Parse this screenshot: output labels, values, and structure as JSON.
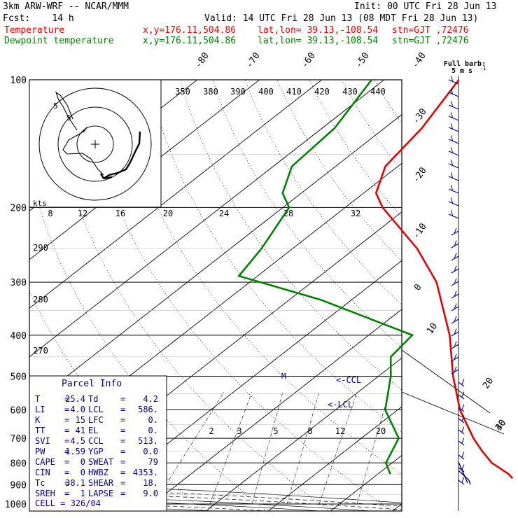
{
  "header": {
    "model": "3km ARW-WRF -- NCAR/MMM",
    "init": "Init: 00 UTC Fri 28 Jun 13",
    "fcst": "Fcst:    14 h",
    "valid": "Valid: 14 UTC Fri 28 Jun 13 (08 MDT Fri 28 Jun 13)",
    "temp_label": "Temperature",
    "dew_label": "Dewpoint temperature",
    "xy": "x,y=176.11,504.86",
    "latlon": "lat,lon= 39.13,-108.54",
    "stn": "stn=GJT ,72476"
  },
  "colors": {
    "temperature": "#e00000",
    "dewpoint": "#008000",
    "wind": "#000080",
    "grid": "#000000"
  },
  "chart_data": {
    "type": "line",
    "title": "",
    "y_axis": "pressure (hPa), log scale",
    "pressure_labels": [
      "100",
      "200",
      "300",
      "400",
      "500",
      "600",
      "700",
      "800",
      "900",
      "1000"
    ],
    "isotherm_labels": [
      "-80",
      "-70",
      "-60",
      "-50",
      "-40",
      "-30",
      "-20",
      "-10",
      "0",
      "10",
      "20",
      "30",
      "40"
    ],
    "theta_labels": [
      "350",
      "380",
      "390",
      "400",
      "410",
      "420",
      "430",
      "440",
      "290",
      "280",
      "270"
    ],
    "mixing_ratio_labels": [
      "8",
      "12",
      "16",
      "20",
      "24",
      "28",
      "32",
      "2",
      "3",
      "5",
      "8",
      "12",
      "20"
    ],
    "series": [
      {
        "name": "Temperature",
        "points": [
          {
            "p": 100,
            "t": -68
          },
          {
            "p": 130,
            "t": -64
          },
          {
            "p": 160,
            "t": -62
          },
          {
            "p": 185,
            "t": -58
          },
          {
            "p": 200,
            "t": -54
          },
          {
            "p": 250,
            "t": -40
          },
          {
            "p": 300,
            "t": -30
          },
          {
            "p": 400,
            "t": -17
          },
          {
            "p": 500,
            "t": -8
          },
          {
            "p": 600,
            "t": 0
          },
          {
            "p": 700,
            "t": 8
          },
          {
            "p": 750,
            "t": 12
          },
          {
            "p": 800,
            "t": 16
          },
          {
            "p": 850,
            "t": 21
          },
          {
            "p": 870,
            "t": 22.5
          }
        ]
      },
      {
        "name": "Dewpoint temperature",
        "points": [
          {
            "p": 100,
            "t": -82
          },
          {
            "p": 130,
            "t": -78
          },
          {
            "p": 160,
            "t": -77
          },
          {
            "p": 185,
            "t": -73
          },
          {
            "p": 200,
            "t": -69
          },
          {
            "p": 250,
            "t": -65
          },
          {
            "p": 290,
            "t": -63
          },
          {
            "p": 330,
            "t": -45
          },
          {
            "p": 400,
            "t": -23
          },
          {
            "p": 450,
            "t": -22
          },
          {
            "p": 500,
            "t": -18
          },
          {
            "p": 600,
            "t": -12
          },
          {
            "p": 700,
            "t": -4
          },
          {
            "p": 800,
            "t": -1
          },
          {
            "p": 850,
            "t": 2
          }
        ]
      }
    ],
    "hodograph": {
      "units": "kts",
      "ring_labels": [
        "5",
        "5"
      ]
    },
    "wind_barb_title": "Full barb:",
    "wind_barb_unit": "5 m s",
    "wind_barb_exp": "-1",
    "markers": {
      "ccl": "<-CCL",
      "lcl": "<-LCL",
      "m": "M"
    }
  },
  "parcel_info": {
    "title": "Parcel Info",
    "rows": [
      {
        "l1": "T",
        "v1": "25.4",
        "l2": "Td",
        "v2": "4.2"
      },
      {
        "l1": "LI",
        "v1": "4.0",
        "l2": "LCL",
        "v2": "586."
      },
      {
        "l1": "K",
        "v1": "15",
        "l2": "LFC",
        "v2": "0."
      },
      {
        "l1": "TT",
        "v1": "41",
        "l2": "EL",
        "v2": "0."
      },
      {
        "l1": "SVI",
        "v1": "4.5",
        "l2": "CCL",
        "v2": "513."
      },
      {
        "l1": "PW",
        "v1": "1.59",
        "l2": "YGP",
        "v2": "0.0"
      },
      {
        "l1": "CAPE",
        "v1": "0",
        "l2": "SWEAT",
        "v2": "79"
      },
      {
        "l1": "CIN",
        "v1": "0",
        "l2": "HWBZ",
        "v2": "4353."
      },
      {
        "l1": "Tc",
        "v1": "38.1",
        "l2": "SHEAR",
        "v2": "18."
      },
      {
        "l1": "SREH",
        "v1": "1",
        "l2": "LAPSE",
        "v2": "9.0"
      }
    ],
    "cell": "CELL = 326/04"
  }
}
